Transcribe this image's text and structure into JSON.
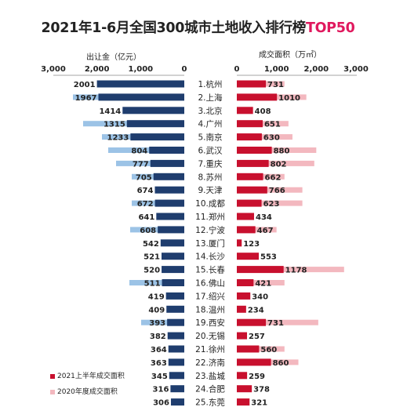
{
  "title": "2021年1-6月全国300城市土地收入排行榜",
  "title_highlight": "TOP50",
  "left_axis_label": "出让金（亿元）",
  "right_axis_label": "成交面积（万㎡）",
  "legend": {
    "h1_label": "2021上半年成交面积",
    "y2020_label": "2020年度成交面积"
  },
  "colors": {
    "navy": "#1f3d6e",
    "lightblue": "#9cc3e6",
    "red": "#c8102e",
    "pink": "#f3b8bf",
    "highlight": "#e0195e"
  },
  "chart_data": {
    "type": "bar",
    "categories": [
      "1.杭州",
      "2.上海",
      "3.北京",
      "4.广州",
      "5.南京",
      "6.武汉",
      "7.重庆",
      "8.苏州",
      "9.天津",
      "10.成都",
      "11.郑州",
      "12.宁波",
      "13.厦门",
      "14.长沙",
      "15.长春",
      "16.佛山",
      "17.绍兴",
      "18.温州",
      "19.西安",
      "20.无锡",
      "21.徐州",
      "22.济南",
      "23.盐城",
      "24.合肥",
      "25.东莞"
    ],
    "left_axis": {
      "label": "出让金（亿元）",
      "ticks": [
        "3,000",
        "2,000",
        "1,000",
        "0"
      ],
      "range": [
        0,
        3000
      ]
    },
    "right_axis": {
      "label": "成交面积（万㎡）",
      "ticks": [
        "0",
        "1,000",
        "2,000",
        "3,000"
      ],
      "range": [
        0,
        3000
      ]
    },
    "series": [
      {
        "name": "出让金",
        "side": "left",
        "values": [
          2001,
          1967,
          1414,
          1315,
          1233,
          804,
          777,
          705,
          674,
          672,
          641,
          608,
          542,
          521,
          520,
          511,
          419,
          409,
          393,
          382,
          364,
          363,
          345,
          316,
          306
        ]
      },
      {
        "name": "2021上半年成交面积",
        "side": "right",
        "values": [
          731,
          1010,
          408,
          651,
          630,
          880,
          802,
          662,
          766,
          623,
          434,
          467,
          123,
          553,
          1178,
          421,
          340,
          234,
          731,
          257,
          560,
          860,
          259,
          378,
          321
        ]
      },
      {
        "name": "2020年度成交面积",
        "side": "right",
        "values": [
          1200,
          1750,
          null,
          1300,
          1400,
          2000,
          1950,
          1200,
          1650,
          1650,
          null,
          1000,
          null,
          null,
          2700,
          1200,
          null,
          null,
          2050,
          null,
          1200,
          1550,
          null,
          null,
          null
        ]
      }
    ]
  }
}
